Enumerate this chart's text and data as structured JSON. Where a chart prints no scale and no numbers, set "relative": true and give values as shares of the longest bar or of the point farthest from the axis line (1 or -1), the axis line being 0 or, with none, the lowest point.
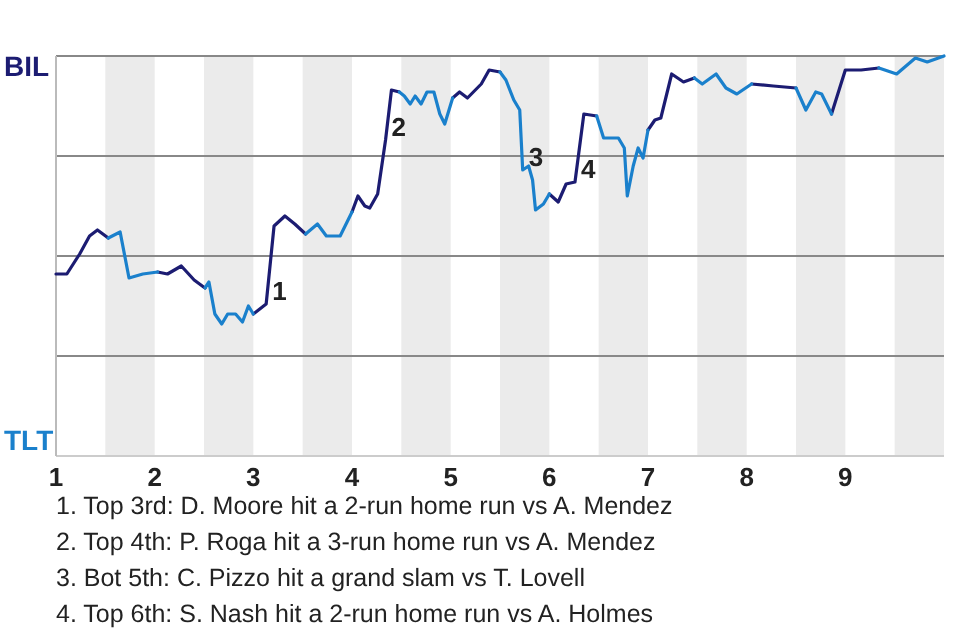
{
  "chart_data": {
    "type": "line",
    "relative": true,
    "x": [
      1.0,
      1.11,
      1.24,
      1.34,
      1.42,
      1.53,
      1.65,
      1.74,
      1.88,
      2.03,
      2.13,
      2.27,
      2.4,
      2.51,
      2.55,
      2.61,
      2.68,
      2.74,
      2.82,
      2.89,
      2.95,
      3.0,
      3.13,
      3.21,
      3.32,
      3.42,
      3.53,
      3.65,
      3.74,
      3.88,
      4.0,
      4.06,
      4.13,
      4.18,
      4.26,
      4.34,
      4.4,
      4.48,
      4.53,
      4.59,
      4.64,
      4.7,
      4.76,
      4.83,
      4.89,
      4.94,
      5.02,
      5.09,
      5.17,
      5.31,
      5.39,
      5.5,
      5.56,
      5.64,
      5.7,
      5.73,
      5.79,
      5.83,
      5.86,
      5.94,
      6.0,
      6.09,
      6.17,
      6.26,
      6.35,
      6.48,
      6.55,
      6.7,
      6.76,
      6.79,
      6.85,
      6.9,
      6.95,
      7.0,
      7.07,
      7.13,
      7.24,
      7.36,
      7.47,
      7.55,
      7.69,
      7.79,
      7.9,
      8.05,
      8.27,
      8.5,
      8.6,
      8.7,
      8.76,
      8.86,
      9.0,
      9.16,
      9.34,
      9.52,
      9.71,
      9.83,
      10.0
    ],
    "series": [
      {
        "name": "BIL",
        "color": "#1c1c72",
        "values": [
          0.455,
          0.455,
          0.505,
          0.55,
          0.565,
          0.545,
          null,
          null,
          null,
          0.46,
          0.455,
          0.475,
          0.44,
          0.42,
          null,
          null,
          null,
          null,
          null,
          null,
          null,
          0.355,
          0.38,
          0.575,
          0.6,
          0.58,
          0.555,
          null,
          null,
          null,
          0.61,
          0.65,
          0.625,
          0.62,
          0.655,
          0.79,
          0.915,
          0.91,
          null,
          null,
          null,
          null,
          null,
          null,
          null,
          null,
          0.895,
          0.91,
          0.895,
          0.93,
          0.965,
          0.96,
          null,
          null,
          null,
          null,
          null,
          null,
          null,
          null,
          0.655,
          0.635,
          0.68,
          0.685,
          0.855,
          0.85,
          null,
          null,
          null,
          null,
          null,
          null,
          null,
          0.815,
          0.84,
          0.845,
          0.955,
          0.935,
          0.945,
          null,
          null,
          null,
          null,
          0.93,
          0.925,
          0.92,
          null,
          null,
          null,
          0.855,
          0.965,
          0.965,
          0.97,
          null,
          null,
          null,
          null
        ]
      },
      {
        "name": "TLT",
        "color": "#1a80cc",
        "values": [
          null,
          null,
          null,
          null,
          null,
          0.545,
          0.56,
          0.445,
          0.455,
          0.46,
          null,
          null,
          null,
          0.42,
          0.435,
          0.355,
          0.33,
          0.355,
          0.355,
          0.335,
          0.375,
          0.355,
          null,
          null,
          null,
          null,
          0.555,
          0.58,
          0.55,
          0.55,
          0.61,
          null,
          null,
          null,
          null,
          null,
          null,
          0.91,
          0.9,
          0.88,
          0.9,
          0.88,
          0.91,
          0.91,
          0.855,
          0.83,
          0.895,
          null,
          null,
          null,
          null,
          0.96,
          0.94,
          0.89,
          0.865,
          0.715,
          0.725,
          0.69,
          0.615,
          0.63,
          0.655,
          null,
          null,
          null,
          null,
          0.85,
          0.795,
          0.795,
          0.77,
          0.65,
          0.725,
          0.77,
          0.745,
          0.815,
          null,
          null,
          null,
          null,
          0.945,
          0.93,
          0.955,
          0.92,
          0.905,
          0.93,
          null,
          0.92,
          0.865,
          0.91,
          0.905,
          0.855,
          null,
          null,
          0.97,
          0.955,
          0.995,
          0.985,
          1.0
        ]
      }
    ],
    "xlim": [
      1,
      10
    ],
    "xticks": [
      1,
      2,
      3,
      4,
      5,
      6,
      7,
      8,
      9
    ],
    "legend": "left",
    "ref_lines": [
      {
        "axis": "y",
        "value": 0.25,
        "color": "#888888"
      },
      {
        "axis": "y",
        "value": 0.5,
        "color": "#888888"
      },
      {
        "axis": "y",
        "value": 0.75,
        "color": "#888888"
      },
      {
        "axis": "y",
        "value": 1,
        "color": "#888888"
      }
    ],
    "bands": [
      {
        "axis": "x",
        "from": 1.5,
        "to": 2,
        "color": "#ebebeb"
      },
      {
        "axis": "x",
        "from": 2.5,
        "to": 3,
        "color": "#ebebeb"
      },
      {
        "axis": "x",
        "from": 3.5,
        "to": 4,
        "color": "#ebebeb"
      },
      {
        "axis": "x",
        "from": 4.5,
        "to": 5,
        "color": "#ebebeb"
      },
      {
        "axis": "x",
        "from": 5.5,
        "to": 6,
        "color": "#ebebeb"
      },
      {
        "axis": "x",
        "from": 6.5,
        "to": 7,
        "color": "#ebebeb"
      },
      {
        "axis": "x",
        "from": 7.5,
        "to": 8,
        "color": "#ebebeb"
      },
      {
        "axis": "x",
        "from": 8.5,
        "to": 9,
        "color": "#ebebeb"
      },
      {
        "axis": "x",
        "from": 9.5,
        "to": 10,
        "color": "#ebebeb"
      }
    ],
    "annotations": [
      {
        "text": "1",
        "x": 3.13,
        "y": 0.38
      },
      {
        "text": "2",
        "x": 4.34,
        "y": 0.79
      },
      {
        "text": "3",
        "x": 5.73,
        "y": 0.715
      },
      {
        "text": "4",
        "x": 6.26,
        "y": 0.685
      },
      "1. Top 3rd: D. Moore hit a 2-run home run vs A. Mendez",
      "2. Top 4th: P. Roga hit a 3-run home run vs A. Mendez",
      "3. Bot 5th: C. Pizzo hit a grand slam vs T. Lovell",
      "4. Top 6th: S. Nash hit a 2-run home run vs A. Holmes"
    ],
    "line_style": "solid",
    "marker": "none"
  }
}
